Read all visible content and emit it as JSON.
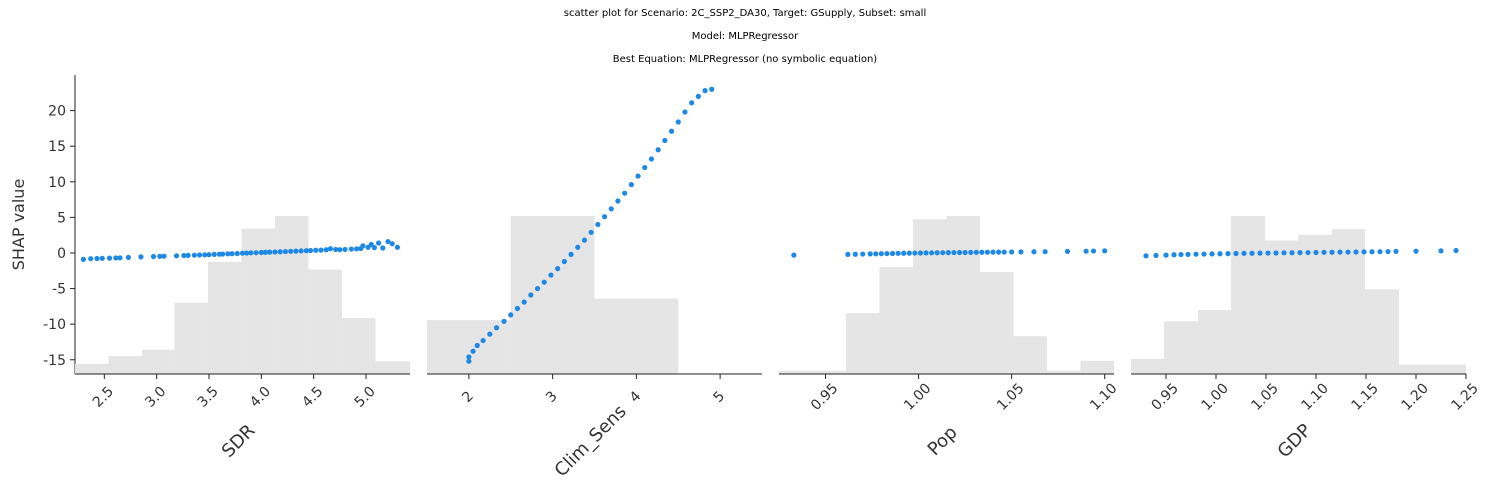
{
  "titles": [
    "scatter plot for Scenario: 2C_SSP2_DA30, Target: GSupply, Subset: small",
    "Model: MLPRegressor",
    "Best Equation: MLPRegressor (no symbolic equation)"
  ],
  "chart_data": {
    "type": "scatter",
    "ylabel": "SHAP value",
    "ylim": [
      -17,
      25
    ],
    "yticks": [
      20,
      15,
      10,
      5,
      0,
      -5,
      -10,
      -15
    ],
    "point_color": "#1e88e5",
    "hist_color": "#e5e5e5",
    "panels": [
      {
        "xlabel": "SDR",
        "xlim": [
          2.22,
          5.42
        ],
        "xticks": [
          2.5,
          3.0,
          3.5,
          4.0,
          4.5,
          5.0
        ],
        "tick_labels": [
          "2.5",
          "3.0",
          "3.5",
          "4.0",
          "4.5",
          "5.0"
        ],
        "histogram": {
          "edges": [
            2.22,
            2.54,
            2.86,
            3.17,
            3.49,
            3.81,
            4.13,
            4.45,
            4.77,
            5.09,
            5.42
          ],
          "heights": [
            0.4,
            0.7,
            0.95,
            2.8,
            4.4,
            5.7,
            6.2,
            4.1,
            2.2,
            0.5
          ]
        },
        "points": [
          [
            2.3,
            -0.9
          ],
          [
            2.37,
            -0.8
          ],
          [
            2.43,
            -0.78
          ],
          [
            2.48,
            -0.75
          ],
          [
            2.55,
            -0.72
          ],
          [
            2.61,
            -0.7
          ],
          [
            2.65,
            -0.68
          ],
          [
            2.73,
            -0.62
          ],
          [
            2.85,
            -0.55
          ],
          [
            2.97,
            -0.5
          ],
          [
            3.03,
            -0.47
          ],
          [
            3.07,
            -0.45
          ],
          [
            3.19,
            -0.4
          ],
          [
            3.26,
            -0.36
          ],
          [
            3.3,
            -0.34
          ],
          [
            3.36,
            -0.31
          ],
          [
            3.41,
            -0.28
          ],
          [
            3.46,
            -0.26
          ],
          [
            3.5,
            -0.24
          ],
          [
            3.55,
            -0.2
          ],
          [
            3.6,
            -0.17
          ],
          [
            3.63,
            -0.15
          ],
          [
            3.68,
            -0.12
          ],
          [
            3.72,
            -0.1
          ],
          [
            3.77,
            -0.07
          ],
          [
            3.82,
            -0.03
          ],
          [
            3.86,
            -0.01
          ],
          [
            3.9,
            0.02
          ],
          [
            3.95,
            0.04
          ],
          [
            4.0,
            0.07
          ],
          [
            4.04,
            0.1
          ],
          [
            4.08,
            0.12
          ],
          [
            4.13,
            0.14
          ],
          [
            4.18,
            0.17
          ],
          [
            4.23,
            0.2
          ],
          [
            4.28,
            0.23
          ],
          [
            4.33,
            0.26
          ],
          [
            4.38,
            0.29
          ],
          [
            4.43,
            0.32
          ],
          [
            4.47,
            0.35
          ],
          [
            4.52,
            0.38
          ],
          [
            4.57,
            0.4
          ],
          [
            4.62,
            0.45
          ],
          [
            4.66,
            0.6
          ],
          [
            4.71,
            0.5
          ],
          [
            4.75,
            0.46
          ],
          [
            4.8,
            0.5
          ],
          [
            4.86,
            0.55
          ],
          [
            4.91,
            0.58
          ],
          [
            4.95,
            0.62
          ],
          [
            4.97,
            1.0
          ],
          [
            5.02,
            0.8
          ],
          [
            5.05,
            1.2
          ],
          [
            5.08,
            0.75
          ],
          [
            5.12,
            1.4
          ],
          [
            5.16,
            0.7
          ],
          [
            5.21,
            1.6
          ],
          [
            5.25,
            1.3
          ],
          [
            5.3,
            0.8
          ]
        ]
      },
      {
        "xlabel": "Clim_Sens",
        "xlim": [
          1.5,
          5.5
        ],
        "xticks": [
          2,
          3,
          4,
          5
        ],
        "tick_labels": [
          "2",
          "3",
          "4",
          "5"
        ],
        "histogram": {
          "edges": [
            1.5,
            2.5,
            3.5,
            4.5,
            5.5
          ],
          "heights": [
            7.5,
            22,
            10.5,
            0
          ]
        },
        "points": [
          [
            2.0,
            -15.2
          ],
          [
            2.0,
            -14.6
          ],
          [
            2.05,
            -13.8
          ],
          [
            2.1,
            -13.0
          ],
          [
            2.17,
            -12.3
          ],
          [
            2.25,
            -11.4
          ],
          [
            2.33,
            -10.5
          ],
          [
            2.42,
            -9.6
          ],
          [
            2.5,
            -8.7
          ],
          [
            2.58,
            -7.8
          ],
          [
            2.66,
            -6.9
          ],
          [
            2.74,
            -5.9
          ],
          [
            2.82,
            -5.0
          ],
          [
            2.9,
            -4.1
          ],
          [
            2.98,
            -3.1
          ],
          [
            3.06,
            -2.2
          ],
          [
            3.14,
            -1.2
          ],
          [
            3.22,
            -0.2
          ],
          [
            3.3,
            0.8
          ],
          [
            3.38,
            1.8
          ],
          [
            3.46,
            2.9
          ],
          [
            3.54,
            4.0
          ],
          [
            3.62,
            5.1
          ],
          [
            3.7,
            6.2
          ],
          [
            3.78,
            7.3
          ],
          [
            3.86,
            8.4
          ],
          [
            3.94,
            9.6
          ],
          [
            4.02,
            10.8
          ],
          [
            4.1,
            12.0
          ],
          [
            4.18,
            13.2
          ],
          [
            4.26,
            14.5
          ],
          [
            4.34,
            15.8
          ],
          [
            4.42,
            17.1
          ],
          [
            4.5,
            18.4
          ],
          [
            4.58,
            19.8
          ],
          [
            4.66,
            21.1
          ],
          [
            4.74,
            22.0
          ],
          [
            4.82,
            22.8
          ],
          [
            4.9,
            23.0
          ]
        ]
      },
      {
        "xlabel": "Pop",
        "xlim": [
          0.925,
          1.105
        ],
        "xticks": [
          0.95,
          1.0,
          1.05,
          1.1
        ],
        "tick_labels": [
          "0.95",
          "1.00",
          "1.05",
          "1.10"
        ],
        "histogram": {
          "edges": [
            0.925,
            0.943,
            0.961,
            0.979,
            0.997,
            1.015,
            1.033,
            1.051,
            1.069,
            1.087,
            1.105
          ],
          "heights": [
            0.2,
            0.2,
            3.7,
            6.5,
            9.4,
            9.6,
            6.2,
            2.3,
            0.2,
            0.8
          ]
        },
        "points": [
          [
            0.933,
            -0.3
          ],
          [
            0.962,
            -0.2
          ],
          [
            0.966,
            -0.18
          ],
          [
            0.97,
            -0.15
          ],
          [
            0.974,
            -0.13
          ],
          [
            0.977,
            -0.12
          ],
          [
            0.98,
            -0.1
          ],
          [
            0.983,
            -0.08
          ],
          [
            0.986,
            -0.07
          ],
          [
            0.989,
            -0.05
          ],
          [
            0.992,
            -0.04
          ],
          [
            0.995,
            -0.02
          ],
          [
            0.998,
            -0.01
          ],
          [
            1.001,
            0.0
          ],
          [
            1.004,
            0.01
          ],
          [
            1.007,
            0.02
          ],
          [
            1.01,
            0.03
          ],
          [
            1.013,
            0.04
          ],
          [
            1.016,
            0.05
          ],
          [
            1.019,
            0.06
          ],
          [
            1.022,
            0.07
          ],
          [
            1.025,
            0.07
          ],
          [
            1.028,
            0.08
          ],
          [
            1.031,
            0.09
          ],
          [
            1.034,
            0.1
          ],
          [
            1.037,
            0.11
          ],
          [
            1.04,
            0.12
          ],
          [
            1.043,
            0.12
          ],
          [
            1.046,
            0.13
          ],
          [
            1.05,
            0.14
          ],
          [
            1.055,
            0.15
          ],
          [
            1.062,
            0.17
          ],
          [
            1.068,
            0.18
          ],
          [
            1.08,
            0.22
          ],
          [
            1.09,
            0.25
          ],
          [
            1.094,
            0.27
          ],
          [
            1.1,
            0.3
          ]
        ]
      },
      {
        "xlabel": "GDP",
        "xlim": [
          0.915,
          1.25
        ],
        "xticks": [
          0.95,
          1.0,
          1.05,
          1.1,
          1.15,
          1.2,
          1.25
        ],
        "tick_labels": [
          "0.95",
          "1.00",
          "1.05",
          "1.10",
          "1.15",
          "1.20",
          "1.25"
        ],
        "histogram": {
          "edges": [
            0.915,
            0.948,
            0.982,
            1.015,
            1.049,
            1.082,
            1.116,
            1.149,
            1.183,
            1.216,
            1.25
          ],
          "heights": [
            0.8,
            2.8,
            3.4,
            8.4,
            7.1,
            7.4,
            7.7,
            4.5,
            0.5,
            0.5
          ]
        },
        "points": [
          [
            0.93,
            -0.4
          ],
          [
            0.94,
            -0.35
          ],
          [
            0.95,
            -0.3
          ],
          [
            0.958,
            -0.25
          ],
          [
            0.965,
            -0.22
          ],
          [
            0.972,
            -0.2
          ],
          [
            0.98,
            -0.17
          ],
          [
            0.988,
            -0.15
          ],
          [
            0.996,
            -0.13
          ],
          [
            1.004,
            -0.11
          ],
          [
            1.012,
            -0.09
          ],
          [
            1.02,
            -0.07
          ],
          [
            1.028,
            -0.05
          ],
          [
            1.036,
            -0.04
          ],
          [
            1.044,
            -0.02
          ],
          [
            1.052,
            -0.01
          ],
          [
            1.06,
            0.0
          ],
          [
            1.068,
            0.02
          ],
          [
            1.076,
            0.03
          ],
          [
            1.084,
            0.05
          ],
          [
            1.092,
            0.06
          ],
          [
            1.1,
            0.07
          ],
          [
            1.108,
            0.09
          ],
          [
            1.116,
            0.1
          ],
          [
            1.124,
            0.12
          ],
          [
            1.132,
            0.13
          ],
          [
            1.14,
            0.14
          ],
          [
            1.148,
            0.15
          ],
          [
            1.156,
            0.17
          ],
          [
            1.164,
            0.18
          ],
          [
            1.172,
            0.2
          ],
          [
            1.18,
            0.22
          ],
          [
            1.2,
            0.25
          ],
          [
            1.225,
            0.3
          ],
          [
            1.24,
            0.35
          ]
        ]
      }
    ]
  }
}
